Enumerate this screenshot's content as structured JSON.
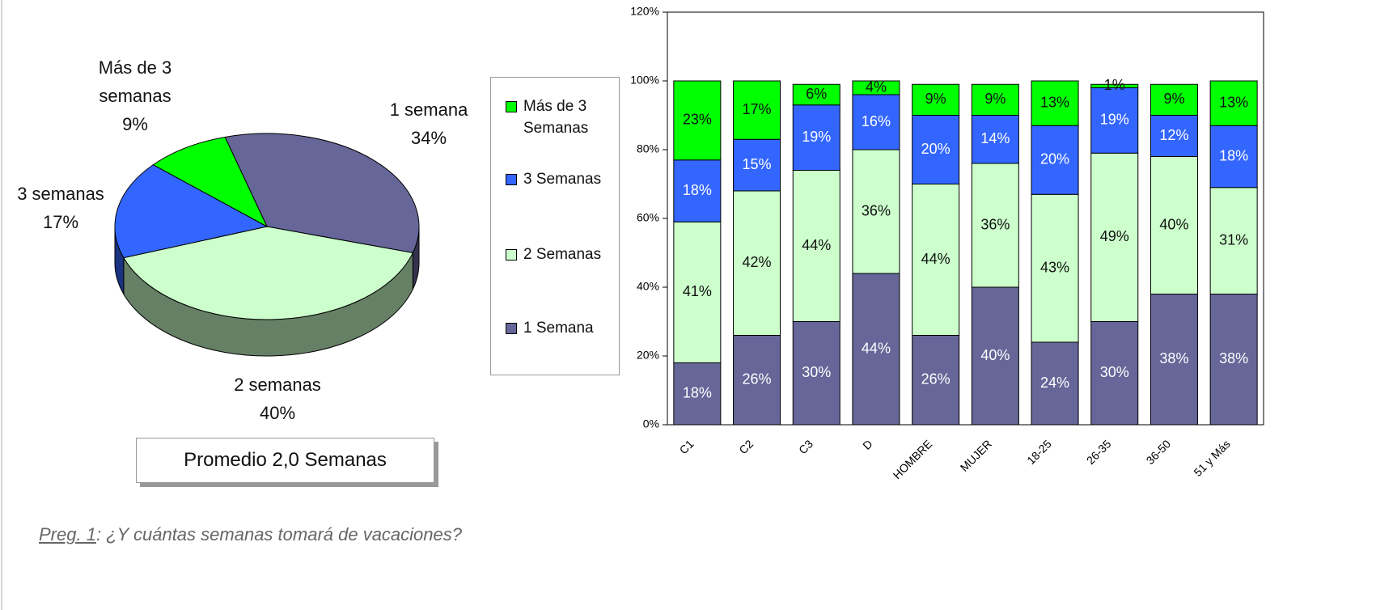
{
  "chart_data": [
    {
      "type": "pie",
      "categories": [
        "1 semana",
        "2 semanas",
        "3 semanas",
        "Más de 3 semanas"
      ],
      "values": [
        34,
        40,
        17,
        9
      ],
      "value_labels": [
        "34%",
        "40%",
        "17%",
        "9%"
      ],
      "colors": [
        "#666699",
        "#ccffcc",
        "#3366ff",
        "#00ff00"
      ],
      "annotation": "Promedio 2,0 Semanas"
    },
    {
      "type": "bar",
      "stacked": true,
      "legend": "left",
      "categories": [
        "C1",
        "C2",
        "C3",
        "D",
        "HOMBRE",
        "MUJER",
        "18-25",
        "26-35",
        "36-50",
        "51 y Más"
      ],
      "series": [
        {
          "name": "1 Semana",
          "color": "#666699",
          "values": [
            18,
            26,
            30,
            44,
            26,
            40,
            24,
            30,
            38,
            38
          ],
          "value_labels": [
            "18%",
            "26%",
            "30%",
            "44%",
            "26%",
            "40%",
            "24%",
            "30%",
            "38%",
            "38%"
          ]
        },
        {
          "name": "2 Semanas",
          "color": "#ccffcc",
          "values": [
            41,
            42,
            44,
            36,
            44,
            36,
            43,
            49,
            40,
            31
          ],
          "value_labels": [
            "41%",
            "42%",
            "44%",
            "36%",
            "44%",
            "36%",
            "43%",
            "49%",
            "40%",
            "31%"
          ]
        },
        {
          "name": "3 Semanas",
          "color": "#3366ff",
          "values": [
            18,
            15,
            19,
            16,
            20,
            14,
            20,
            19,
            12,
            18
          ],
          "value_labels": [
            "18%",
            "15%",
            "19%",
            "16%",
            "20%",
            "14%",
            "20%",
            "19%",
            "12%",
            "18%"
          ]
        },
        {
          "name": "Más de 3 Semanas",
          "color": "#00ff00",
          "values": [
            23,
            17,
            6,
            4,
            9,
            9,
            13,
            1,
            9,
            13
          ],
          "value_labels": [
            "23%",
            "17%",
            "6%",
            "4%",
            "9%",
            "9%",
            "13%",
            "1%",
            "9%",
            "13%"
          ]
        }
      ],
      "ylim": [
        0,
        120
      ],
      "yticks": [
        {
          "value": 0,
          "label": "0%"
        },
        {
          "value": 20,
          "label": "20%"
        },
        {
          "value": 40,
          "label": "40%"
        },
        {
          "value": 60,
          "label": "60%"
        },
        {
          "value": 80,
          "label": "80%"
        },
        {
          "value": 100,
          "label": "100%"
        },
        {
          "value": 120,
          "label": "120%"
        }
      ]
    }
  ],
  "caption": {
    "label": "Preg. 1",
    "text": ": ¿Y cuántas semanas tomará de vacaciones?"
  }
}
